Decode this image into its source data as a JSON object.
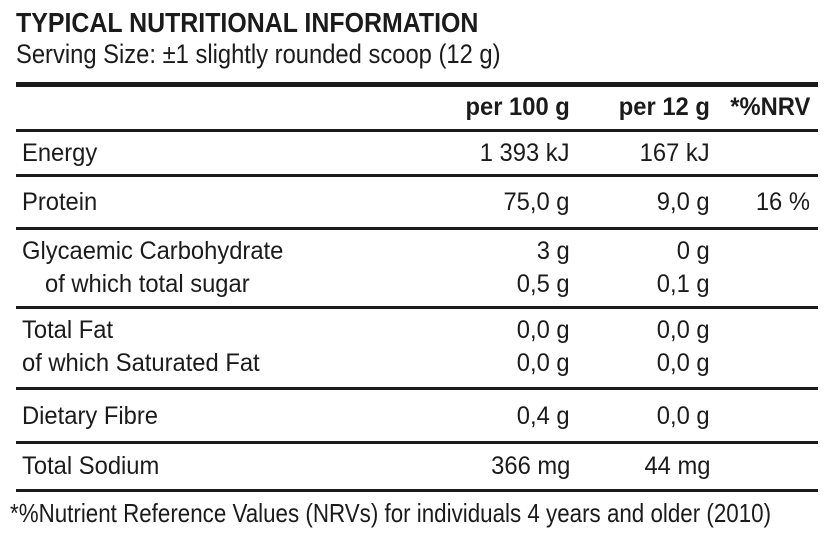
{
  "page": {
    "title": "TYPICAL NUTRITIONAL INFORMATION",
    "serving_size": "Serving Size: ±1 slightly rounded scoop (12 g)",
    "footnote": "*%Nutrient Reference Values (NRVs) for individuals 4 years and older (2010)"
  },
  "colors": {
    "ink": "#1b1b1b",
    "background": "#ffffff"
  },
  "table": {
    "columns": {
      "nutrient": "",
      "per100": "per 100 g",
      "per12": "per 12 g",
      "nrv": "*%NRV"
    },
    "rows": [
      {
        "lines": [
          {
            "label": "Energy",
            "per100": "1 393 kJ",
            "per12": "167 kJ",
            "nrv": ""
          }
        ]
      },
      {
        "lines": [
          {
            "label": "Protein",
            "per100": "75,0 g",
            "per12": "9,0 g",
            "nrv": "16 %"
          }
        ]
      },
      {
        "lines": [
          {
            "label": "Glycaemic Carbohydrate",
            "per100": "3 g",
            "per12": "0 g",
            "nrv": ""
          },
          {
            "label": "of which total sugar",
            "per100": "0,5 g",
            "per12": "0,1 g",
            "nrv": ""
          }
        ]
      },
      {
        "lines": [
          {
            "label": "Total Fat",
            "per100": "0,0 g",
            "per12": "0,0 g",
            "nrv": ""
          },
          {
            "label": "of which Saturated Fat",
            "per100": "0,0 g",
            "per12": "0,0 g",
            "nrv": ""
          }
        ]
      },
      {
        "lines": [
          {
            "label": "Dietary Fibre",
            "per100": "0,4 g",
            "per12": "0,0 g",
            "nrv": ""
          }
        ]
      },
      {
        "lines": [
          {
            "label": "Total Sodium",
            "per100": "366 mg",
            "per12": "44 mg",
            "nrv": ""
          }
        ]
      }
    ]
  }
}
